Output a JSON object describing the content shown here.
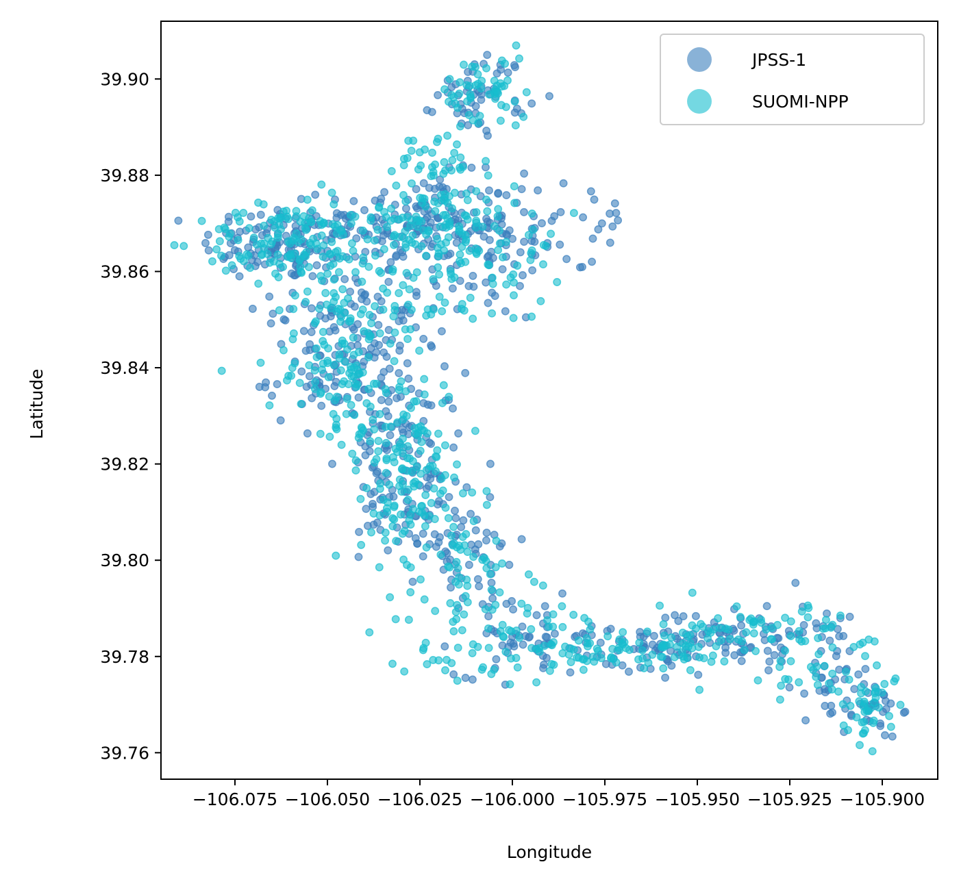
{
  "chart_data": {
    "type": "scatter",
    "title": "",
    "xlabel": "Longitude",
    "ylabel": "Latitude",
    "xlim": [
      -106.095,
      -105.885
    ],
    "ylim": [
      39.7545,
      39.912
    ],
    "x_ticks": [
      -106.075,
      -106.05,
      -106.025,
      -106.0,
      -105.975,
      -105.95,
      -105.925,
      -105.9
    ],
    "x_tick_labels": [
      "−106.075",
      "−106.050",
      "−106.025",
      "−106.000",
      "−105.975",
      "−105.950",
      "−105.925",
      "−105.900"
    ],
    "y_ticks": [
      39.76,
      39.78,
      39.8,
      39.82,
      39.84,
      39.86,
      39.88,
      39.9
    ],
    "y_tick_labels": [
      "39.76",
      "39.78",
      "39.80",
      "39.82",
      "39.84",
      "39.86",
      "39.88",
      "39.90"
    ],
    "grid": false,
    "legend_position": "top-right",
    "series": [
      {
        "name": "JPSS-1",
        "color": "#3a7fbd",
        "clusters": [
          {
            "x": -106.062,
            "y": 39.866,
            "sx": 0.011,
            "sy": 0.004,
            "n": 120
          },
          {
            "x": -106.025,
            "y": 39.87,
            "sx": 0.013,
            "sy": 0.005,
            "n": 150
          },
          {
            "x": -106.04,
            "y": 39.852,
            "sx": 0.012,
            "sy": 0.006,
            "n": 90
          },
          {
            "x": -106.048,
            "y": 39.838,
            "sx": 0.009,
            "sy": 0.005,
            "n": 70
          },
          {
            "x": -106.03,
            "y": 39.825,
            "sx": 0.008,
            "sy": 0.007,
            "n": 80
          },
          {
            "x": -106.027,
            "y": 39.812,
            "sx": 0.007,
            "sy": 0.006,
            "n": 70
          },
          {
            "x": -106.008,
            "y": 39.897,
            "sx": 0.006,
            "sy": 0.004,
            "n": 55
          },
          {
            "x": -106.005,
            "y": 39.862,
            "sx": 0.008,
            "sy": 0.006,
            "n": 50
          },
          {
            "x": -106.012,
            "y": 39.8,
            "sx": 0.008,
            "sy": 0.006,
            "n": 45
          },
          {
            "x": -105.995,
            "y": 39.784,
            "sx": 0.01,
            "sy": 0.004,
            "n": 55
          },
          {
            "x": -105.965,
            "y": 39.781,
            "sx": 0.012,
            "sy": 0.003,
            "n": 60
          },
          {
            "x": -105.94,
            "y": 39.785,
            "sx": 0.01,
            "sy": 0.003,
            "n": 60
          },
          {
            "x": -105.915,
            "y": 39.78,
            "sx": 0.008,
            "sy": 0.006,
            "n": 45
          },
          {
            "x": -105.903,
            "y": 39.769,
            "sx": 0.004,
            "sy": 0.003,
            "n": 35
          },
          {
            "x": -105.985,
            "y": 39.87,
            "sx": 0.01,
            "sy": 0.005,
            "n": 30
          }
        ]
      },
      {
        "name": "SUOMI-NPP",
        "color": "#17becf",
        "clusters": [
          {
            "x": -106.062,
            "y": 39.866,
            "sx": 0.011,
            "sy": 0.004,
            "n": 110
          },
          {
            "x": -106.025,
            "y": 39.87,
            "sx": 0.013,
            "sy": 0.005,
            "n": 140
          },
          {
            "x": -106.04,
            "y": 39.852,
            "sx": 0.012,
            "sy": 0.006,
            "n": 85
          },
          {
            "x": -106.048,
            "y": 39.838,
            "sx": 0.009,
            "sy": 0.005,
            "n": 70
          },
          {
            "x": -106.03,
            "y": 39.825,
            "sx": 0.008,
            "sy": 0.007,
            "n": 80
          },
          {
            "x": -106.027,
            "y": 39.812,
            "sx": 0.007,
            "sy": 0.006,
            "n": 65
          },
          {
            "x": -106.008,
            "y": 39.897,
            "sx": 0.006,
            "sy": 0.004,
            "n": 55
          },
          {
            "x": -106.02,
            "y": 39.883,
            "sx": 0.005,
            "sy": 0.003,
            "n": 30
          },
          {
            "x": -106.005,
            "y": 39.862,
            "sx": 0.008,
            "sy": 0.006,
            "n": 45
          },
          {
            "x": -106.012,
            "y": 39.8,
            "sx": 0.008,
            "sy": 0.006,
            "n": 45
          },
          {
            "x": -106.018,
            "y": 39.783,
            "sx": 0.01,
            "sy": 0.006,
            "n": 30
          },
          {
            "x": -105.995,
            "y": 39.784,
            "sx": 0.01,
            "sy": 0.004,
            "n": 55
          },
          {
            "x": -105.965,
            "y": 39.781,
            "sx": 0.012,
            "sy": 0.003,
            "n": 60
          },
          {
            "x": -105.94,
            "y": 39.785,
            "sx": 0.01,
            "sy": 0.003,
            "n": 55
          },
          {
            "x": -105.915,
            "y": 39.78,
            "sx": 0.008,
            "sy": 0.006,
            "n": 45
          },
          {
            "x": -105.903,
            "y": 39.769,
            "sx": 0.004,
            "sy": 0.003,
            "n": 35
          }
        ]
      }
    ]
  }
}
